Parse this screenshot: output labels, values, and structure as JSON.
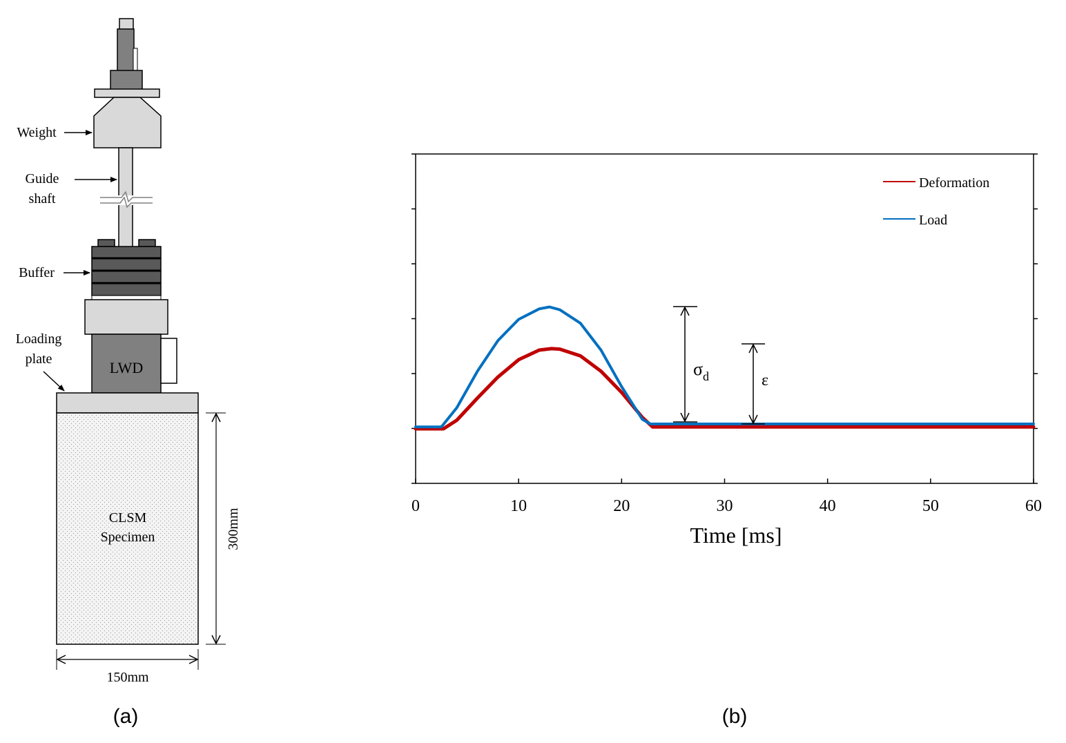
{
  "panel_a": {
    "caption": "(a)",
    "labels": {
      "weight": "Weight",
      "guide_line1": "Guide",
      "guide_line2": "shaft",
      "buffer": "Buffer",
      "loading_line1": "Loading",
      "loading_line2": "plate",
      "lwd": "LWD",
      "specimen_line1": "CLSM",
      "specimen_line2": "Specimen",
      "height_dim": "300mm",
      "width_dim": "150mm"
    },
    "colors": {
      "light_gray": "#d9d9d9",
      "mid_gray": "#808080",
      "dark_gray": "#595959",
      "outline": "#000000"
    }
  },
  "panel_b": {
    "caption": "(b)",
    "annotations": {
      "sigma": "σ",
      "sigma_sub": "d",
      "epsilon": "ε"
    }
  },
  "chart_data": {
    "type": "line",
    "xlabel": "Time [ms]",
    "ylabel": "",
    "xlim": [
      0,
      60
    ],
    "x_ticks": [
      0,
      10,
      20,
      30,
      40,
      50,
      60
    ],
    "y_ticks_count": 7,
    "y_tick_labels_shown": false,
    "legend_position": "top-right",
    "series": [
      {
        "name": "Deformation",
        "color": "#c00000",
        "x": [
          0,
          2.7,
          4,
          6,
          8,
          10,
          12,
          13.2,
          14,
          16,
          18,
          20,
          22,
          23,
          30,
          40,
          50,
          60
        ],
        "y": [
          0,
          0,
          0.09,
          0.32,
          0.54,
          0.72,
          0.82,
          0.835,
          0.83,
          0.76,
          0.6,
          0.38,
          0.12,
          0.02,
          0.02,
          0.02,
          0.02,
          0.02
        ]
      },
      {
        "name": "Load",
        "color": "#0070c0",
        "x": [
          0,
          2.5,
          4,
          6,
          8,
          10,
          12,
          13,
          14,
          16,
          18,
          20,
          22,
          22.8,
          30,
          40,
          50,
          60
        ],
        "y": [
          0.02,
          0.02,
          0.22,
          0.6,
          0.92,
          1.14,
          1.25,
          1.27,
          1.24,
          1.1,
          0.82,
          0.44,
          0.1,
          0.05,
          0.05,
          0.05,
          0.05,
          0.05
        ]
      }
    ]
  }
}
